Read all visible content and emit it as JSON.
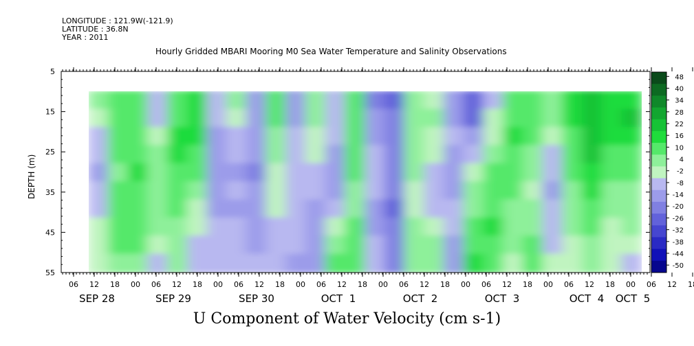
{
  "header": {
    "longitude": "LONGITUDE : 121.9W(-121.9)",
    "latitude": "LATITUDE : 36.8N",
    "year": "YEAR : 2011"
  },
  "chart_data": {
    "type": "heatmap",
    "title": "Hourly Gridded MBARI Mooring M0 Sea Water Temperature and Salinity Observations",
    "main_title": "U Component of Water Velocity (cm s-1)",
    "xlabel": "",
    "ylabel": "DEPTH (m)",
    "y_ticks": [
      5,
      15,
      25,
      35,
      45,
      55
    ],
    "ylim": [
      55,
      5
    ],
    "x_hour_ticks": [
      "06",
      "12",
      "18",
      "00",
      "06",
      "12",
      "18",
      "00",
      "06",
      "12",
      "18",
      "00",
      "06",
      "12",
      "18",
      "00",
      "06",
      "12",
      "18",
      "00",
      "06",
      "12",
      "18",
      "00",
      "06",
      "12",
      "18",
      "00",
      "06",
      "12",
      "18",
      "00"
    ],
    "x_day_labels": [
      "SEP 28",
      "SEP 29",
      "SEP 30",
      "OCT  1",
      "OCT  2",
      "OCT  3",
      "OCT  4",
      "OCT  5"
    ],
    "colorbar_labels": [
      "48",
      "40",
      "34",
      "28",
      "22",
      "16",
      "10",
      "4",
      "-2",
      "-8",
      "-14",
      "-20",
      "-26",
      "-32",
      "-38",
      "-44",
      "-50"
    ],
    "colorbar_colors": [
      "#0a4a1a",
      "#0d6a22",
      "#10882a",
      "#13a630",
      "#16c236",
      "#1fdc3c",
      "#55e86a",
      "#8ef09a",
      "#c0f4c0",
      "#b8b8f0",
      "#9c9cea",
      "#8080e2",
      "#6262da",
      "#4646d0",
      "#2a2ac4",
      "#1010b8",
      "#06068e"
    ],
    "depth_bins": [
      10,
      15,
      20,
      25,
      30,
      35,
      40,
      45,
      50,
      55
    ],
    "time_bins": [
      "SEP28 06",
      "SEP28 12",
      "SEP28 18",
      "SEP29 00",
      "SEP29 06",
      "SEP29 12",
      "SEP29 18",
      "SEP30 00",
      "SEP30 06",
      "SEP30 12",
      "SEP30 18",
      "OCT1 00",
      "OCT1 06",
      "OCT1 12",
      "OCT1 18",
      "OCT2 00",
      "OCT2 06",
      "OCT2 12",
      "OCT2 18",
      "OCT3 00",
      "OCT3 06",
      "OCT3 12",
      "OCT3 18",
      "OCT4 00",
      "OCT4 06",
      "OCT4 12",
      "OCT4 18",
      "OCT5 00"
    ],
    "values": [
      [
        4,
        14,
        10,
        -8,
        12,
        16,
        -6,
        4,
        -10,
        12,
        -12,
        6,
        -4,
        10,
        -16,
        -22,
        4,
        2,
        -12,
        -26,
        -4,
        12,
        10,
        6,
        16,
        22,
        16,
        20
      ],
      [
        2,
        12,
        10,
        -6,
        14,
        18,
        -8,
        2,
        -12,
        10,
        -10,
        4,
        -6,
        10,
        -14,
        -20,
        6,
        4,
        -10,
        -22,
        -2,
        14,
        12,
        4,
        18,
        24,
        18,
        22
      ],
      [
        -4,
        12,
        12,
        -2,
        16,
        18,
        -10,
        -4,
        -14,
        8,
        -8,
        2,
        -8,
        12,
        -10,
        -18,
        8,
        2,
        -8,
        -14,
        0,
        16,
        10,
        2,
        14,
        26,
        16,
        18
      ],
      [
        -8,
        10,
        14,
        4,
        16,
        14,
        -12,
        -8,
        -14,
        6,
        -6,
        -2,
        -10,
        12,
        -8,
        -16,
        6,
        -2,
        -10,
        -6,
        6,
        14,
        8,
        -4,
        12,
        24,
        14,
        14
      ],
      [
        -10,
        8,
        16,
        6,
        14,
        10,
        -14,
        -10,
        -16,
        2,
        -4,
        -6,
        -12,
        10,
        -6,
        -18,
        4,
        -6,
        -12,
        2,
        10,
        12,
        4,
        -8,
        10,
        20,
        10,
        10
      ],
      [
        -8,
        10,
        14,
        8,
        12,
        6,
        -12,
        -8,
        -14,
        0,
        -4,
        -8,
        -10,
        8,
        -8,
        -20,
        2,
        -8,
        -10,
        6,
        12,
        10,
        2,
        -10,
        8,
        16,
        8,
        8
      ],
      [
        -6,
        12,
        12,
        6,
        10,
        2,
        -10,
        -10,
        -12,
        -2,
        -6,
        -10,
        -6,
        8,
        -10,
        -22,
        2,
        -4,
        -8,
        8,
        14,
        8,
        4,
        -8,
        6,
        12,
        6,
        6
      ],
      [
        -2,
        12,
        10,
        4,
        8,
        -2,
        -8,
        -8,
        -12,
        -4,
        -8,
        -10,
        2,
        10,
        -10,
        -20,
        4,
        0,
        -6,
        12,
        16,
        6,
        8,
        -6,
        4,
        10,
        2,
        4
      ],
      [
        0,
        10,
        10,
        2,
        6,
        -4,
        -6,
        -6,
        -10,
        -6,
        -8,
        -12,
        8,
        12,
        -8,
        -18,
        6,
        4,
        -10,
        14,
        14,
        4,
        10,
        -4,
        2,
        8,
        0,
        2
      ],
      [
        2,
        8,
        8,
        -4,
        4,
        -6,
        -4,
        -8,
        -8,
        -6,
        -10,
        -14,
        12,
        10,
        -6,
        -16,
        8,
        6,
        -14,
        16,
        12,
        2,
        10,
        -2,
        0,
        6,
        -2,
        -4
      ]
    ]
  }
}
